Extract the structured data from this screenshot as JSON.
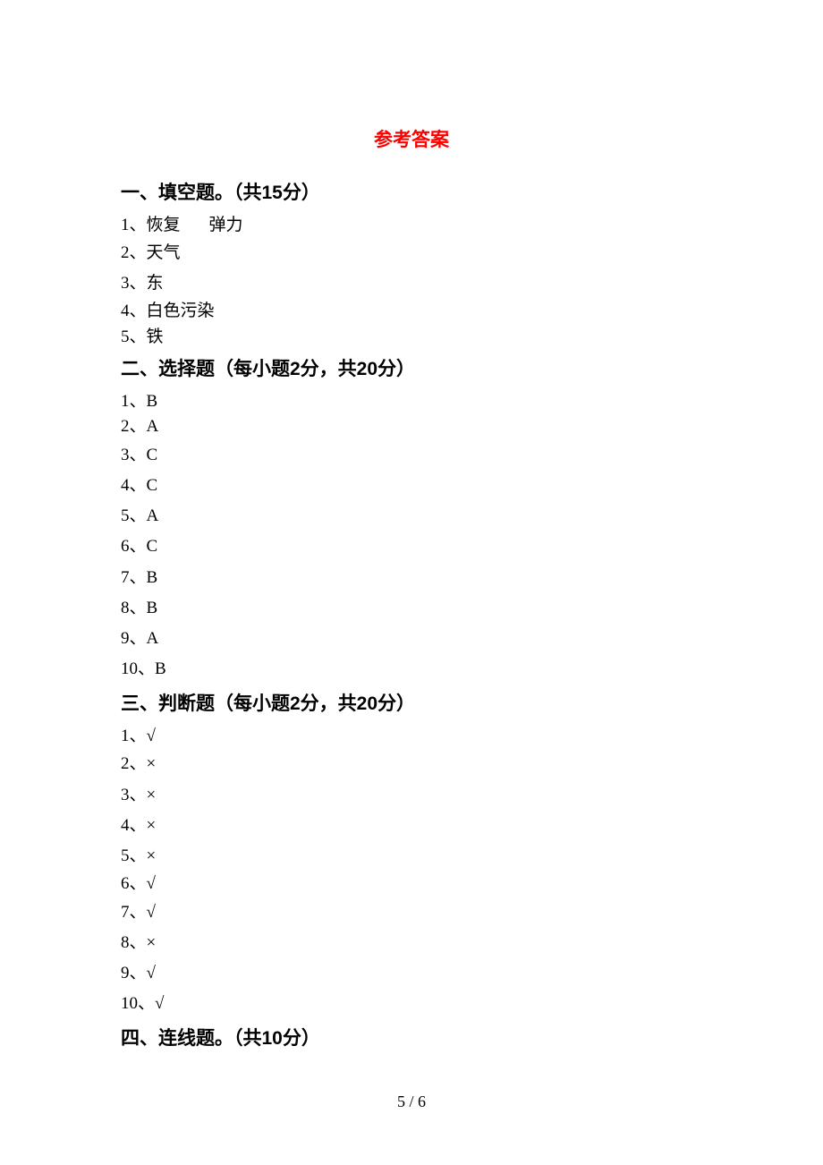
{
  "title": "参考答案",
  "sections": {
    "s1": {
      "heading": "一、填空题。（共15分）",
      "answers": {
        "a1": "1、恢复",
        "a1b": "弹力",
        "a2": "2、天气",
        "a3": "3、东",
        "a4": "4、白色污染",
        "a5": "5、铁"
      }
    },
    "s2": {
      "heading": "二、选择题（每小题2分，共20分）",
      "answers": {
        "a1": "1、B",
        "a2": "2、A",
        "a3": "3、C",
        "a4": "4、C",
        "a5": "5、A",
        "a6": "6、C",
        "a7": "7、B",
        "a8": "8、B",
        "a9": "9、A",
        "a10": "10、B"
      }
    },
    "s3": {
      "heading": "三、判断题（每小题2分，共20分）",
      "answers": {
        "a1": "1、√",
        "a2": "2、×",
        "a3": "3、×",
        "a4": "4、×",
        "a5": "5、×",
        "a6": "6、√",
        "a7": "7、√",
        "a8": "8、×",
        "a9": "9、√",
        "a10": "10、√"
      }
    },
    "s4": {
      "heading": "四、连线题。（共10分）"
    }
  },
  "page_number": "5 / 6",
  "colors": {
    "title": "#ff0000",
    "text": "#000000",
    "background": "#ffffff"
  }
}
